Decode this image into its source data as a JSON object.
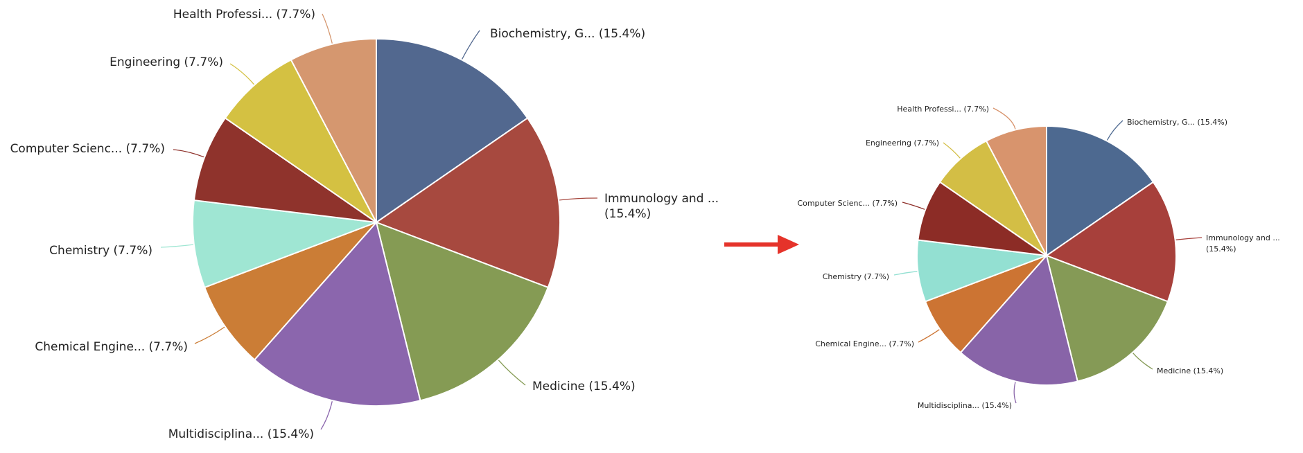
{
  "chart_data": [
    {
      "type": "pie",
      "categories": [
        "Biochemistry, G...",
        "Immunology and ...",
        "Medicine",
        "Multidisciplina...",
        "Chemical Engine...",
        "Chemistry",
        "Computer Scienc...",
        "Engineering",
        "Health Professi..."
      ],
      "values": [
        15.4,
        15.4,
        15.4,
        15.4,
        7.7,
        7.7,
        7.7,
        7.7,
        7.7
      ],
      "labels": [
        [
          "Biochemistry, G... (15.4%)"
        ],
        [
          "Immunology and ...",
          "(15.4%)"
        ],
        [
          "Medicine (15.4%)"
        ],
        [
          "Multidisciplina... (15.4%)"
        ],
        [
          "Chemical Engine... (7.7%)"
        ],
        [
          "Chemistry (7.7%)"
        ],
        [
          "Computer Scienc... (7.7%)"
        ],
        [
          "Engineering (7.7%)"
        ],
        [
          "Health Professi... (7.7%)"
        ]
      ],
      "colors": [
        "#52688f",
        "#a7493f",
        "#859b54",
        "#8b66ad",
        "#cb7d36",
        "#9fe6d3",
        "#8f332c",
        "#d4c142",
        "#d5976f"
      ],
      "start_angle": 0,
      "direction": "clockwise"
    },
    {
      "type": "pie",
      "categories": [
        "Biochemistry, G...",
        "Immunology and ...",
        "Medicine",
        "Multidisciplina...",
        "Chemical Engine...",
        "Chemistry",
        "Computer Scienc...",
        "Engineering",
        "Health Professi..."
      ],
      "values": [
        15.4,
        15.4,
        15.4,
        15.4,
        7.7,
        7.7,
        7.7,
        7.7,
        7.7
      ],
      "labels": [
        [
          "Biochemistry, G... (15.4%)"
        ],
        [
          "Immunology and ...",
          "(15.4%)"
        ],
        [
          "Medicine (15.4%)"
        ],
        [
          "Multidisciplina... (15.4%)"
        ],
        [
          "Chemical Engine... (7.7%)"
        ],
        [
          "Chemistry (7.7%)"
        ],
        [
          "Computer Scienc... (7.7%)"
        ],
        [
          "Engineering (7.7%)"
        ],
        [
          "Health Professi... (7.7%)"
        ]
      ],
      "colors": [
        "#4d6990",
        "#a7403b",
        "#859a56",
        "#8864a8",
        "#cc7433",
        "#93e0d2",
        "#8c2c26",
        "#d3be45",
        "#d8946d"
      ],
      "start_angle": 0,
      "direction": "clockwise"
    }
  ],
  "arrow": {
    "color": "#e5332a"
  }
}
